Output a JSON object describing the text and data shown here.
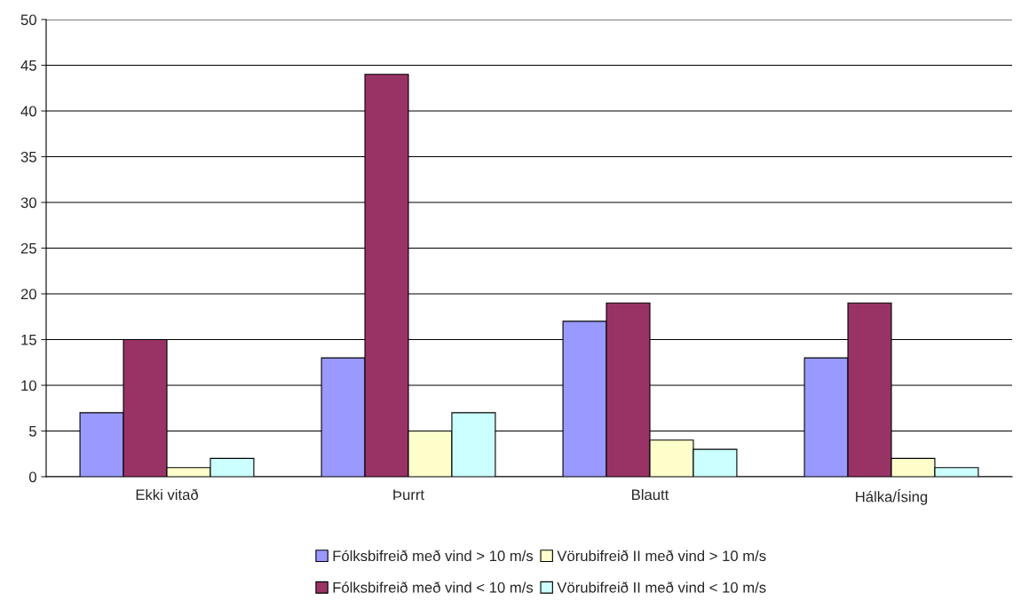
{
  "chart_data": {
    "type": "bar",
    "categories": [
      "Ekki vitað",
      "Þurrt",
      "Blautt",
      "Hálka/Ísing"
    ],
    "series": [
      {
        "name": "Fólksbifreið með vind > 10 m/s",
        "color": "#9999ff",
        "values": [
          7,
          13,
          17,
          13
        ]
      },
      {
        "name": "Fólksbifreið með vind < 10 m/s",
        "color": "#993366",
        "values": [
          15,
          44,
          19,
          19
        ]
      },
      {
        "name": "Vörubifreið II með vind > 10 m/s",
        "color": "#ffffcc",
        "values": [
          1,
          5,
          4,
          2
        ]
      },
      {
        "name": "Vörubifreið II með vind < 10 m/s",
        "color": "#ccffff",
        "values": [
          2,
          7,
          3,
          1
        ]
      }
    ],
    "ylim": [
      0,
      50
    ],
    "yticks": [
      0,
      5,
      10,
      15,
      20,
      25,
      30,
      35,
      40,
      45,
      50
    ],
    "grid": "y",
    "legend": "bottom"
  }
}
